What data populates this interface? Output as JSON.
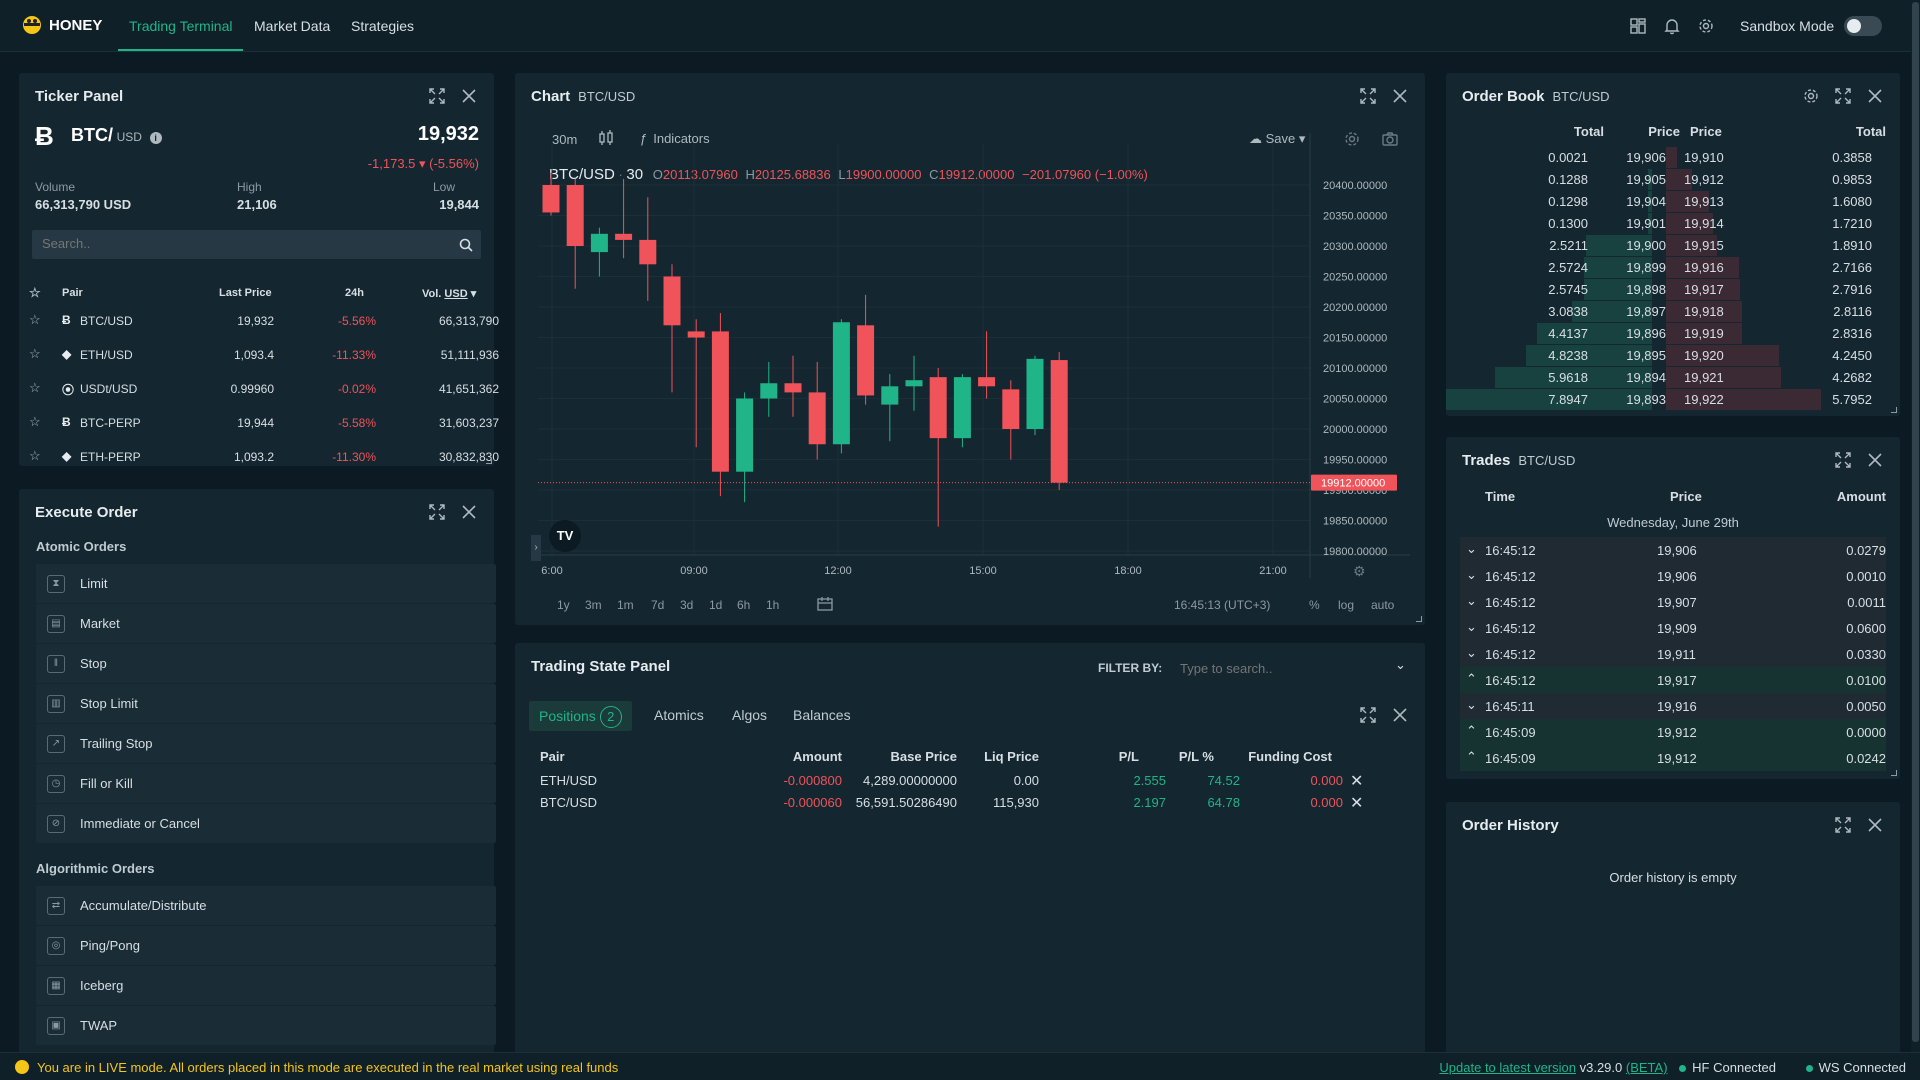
{
  "nav": {
    "brand": "HONEY",
    "tabs": [
      "Trading Terminal",
      "Market Data",
      "Strategies"
    ],
    "sandbox_label": "Sandbox Mode"
  },
  "ticker": {
    "title": "Ticker Panel",
    "symbol": "BTC/",
    "quote": "USD",
    "price": "19,932",
    "change": "-1,173.5 ▾ (-5.56%)",
    "volume_label": "Volume",
    "volume": "66,313,790 USD",
    "high_label": "High",
    "high": "21,106",
    "low_label": "Low",
    "low": "19,844",
    "search_placeholder": "Search..",
    "headers": [
      "Pair",
      "Last Price",
      "24h",
      "Vol.",
      "USD"
    ],
    "rows": [
      {
        "pair": "BTC/USD",
        "last": "19,932",
        "change": "-5.56%",
        "vol": "66,313,790"
      },
      {
        "pair": "ETH/USD",
        "last": "1,093.4",
        "change": "-11.33%",
        "vol": "51,111,936"
      },
      {
        "pair": "USDt/USD",
        "last": "0.99960",
        "change": "-0.02%",
        "vol": "41,651,362"
      },
      {
        "pair": "BTC-PERP",
        "last": "19,944",
        "change": "-5.58%",
        "vol": "31,603,237"
      },
      {
        "pair": "ETH-PERP",
        "last": "1,093.2",
        "change": "-11.30%",
        "vol": "30,832,830"
      }
    ]
  },
  "execute": {
    "title": "Execute Order",
    "atomic_label": "Atomic Orders",
    "atomic": [
      "Limit",
      "Market",
      "Stop",
      "Stop Limit",
      "Trailing Stop",
      "Fill or Kill",
      "Immediate or Cancel"
    ],
    "algo_label": "Algorithmic Orders",
    "algo": [
      "Accumulate/Distribute",
      "Ping/Pong",
      "Iceberg",
      "TWAP"
    ]
  },
  "chart": {
    "title": "Chart",
    "pair": "BTC/USD",
    "interval": "30m",
    "indicators_label": "Indicators",
    "save_label": "Save",
    "legend_symbol": "BTC/USD",
    "legend_interval": "30",
    "ohlc": {
      "o_label": "O",
      "o": "20113.07960",
      "h_label": "H",
      "h": "20125.68836",
      "l_label": "L",
      "l": "19900.00000",
      "c_label": "C",
      "c": "19912.00000",
      "chg": "−201.07960 (−1.00%)"
    },
    "y_ticks": [
      "20400.00000",
      "20350.00000",
      "20300.00000",
      "20250.00000",
      "20200.00000",
      "20150.00000",
      "20100.00000",
      "20050.00000",
      "20000.00000",
      "19950.00000",
      "19900.00000",
      "19850.00000",
      "19800.00000"
    ],
    "last_price_tag": "19912.00000",
    "x_ticks": [
      "6:00",
      "09:00",
      "12:00",
      "15:00",
      "18:00",
      "21:00"
    ],
    "ranges": [
      "1y",
      "3m",
      "1m",
      "7d",
      "3d",
      "1d",
      "6h",
      "1h"
    ],
    "time": "16:45:13 (UTC+3)",
    "opts": [
      "%",
      "log",
      "auto"
    ]
  },
  "chart_data": {
    "type": "candlestick",
    "series": [
      {
        "name": "BTC/USD",
        "candles": [
          {
            "o": 20400,
            "h": 20420,
            "l": 20350,
            "c": 20355
          },
          {
            "o": 20400,
            "h": 20410,
            "l": 20230,
            "c": 20300
          },
          {
            "o": 20290,
            "h": 20330,
            "l": 20250,
            "c": 20320
          },
          {
            "o": 20320,
            "h": 20410,
            "l": 20280,
            "c": 20310
          },
          {
            "o": 20310,
            "h": 20380,
            "l": 20210,
            "c": 20270
          },
          {
            "o": 20250,
            "h": 20270,
            "l": 20060,
            "c": 20170
          },
          {
            "o": 20160,
            "h": 20180,
            "l": 19970,
            "c": 20150
          },
          {
            "o": 20160,
            "h": 20190,
            "l": 19890,
            "c": 19930
          },
          {
            "o": 19930,
            "h": 20060,
            "l": 19880,
            "c": 20050
          },
          {
            "o": 20050,
            "h": 20110,
            "l": 20020,
            "c": 20075
          },
          {
            "o": 20075,
            "h": 20120,
            "l": 20020,
            "c": 20060
          },
          {
            "o": 20060,
            "h": 20110,
            "l": 19950,
            "c": 19975
          },
          {
            "o": 19975,
            "h": 20180,
            "l": 19960,
            "c": 20175
          },
          {
            "o": 20170,
            "h": 20220,
            "l": 20040,
            "c": 20055
          },
          {
            "o": 20040,
            "h": 20090,
            "l": 19980,
            "c": 20070
          },
          {
            "o": 20070,
            "h": 20120,
            "l": 20030,
            "c": 20080
          },
          {
            "o": 20085,
            "h": 20100,
            "l": 19840,
            "c": 19985
          },
          {
            "o": 19985,
            "h": 20090,
            "l": 19970,
            "c": 20085
          },
          {
            "o": 20085,
            "h": 20160,
            "l": 20050,
            "c": 20070
          },
          {
            "o": 20065,
            "h": 20080,
            "l": 19950,
            "c": 20000
          },
          {
            "o": 20000,
            "h": 20120,
            "l": 19990,
            "c": 20115
          },
          {
            "o": 20113,
            "h": 20126,
            "l": 19900,
            "c": 19912
          }
        ]
      }
    ],
    "y_range": [
      19800,
      20400
    ],
    "x_ticks": [
      "6:00",
      "09:00",
      "12:00",
      "15:00",
      "18:00",
      "21:00"
    ]
  },
  "state": {
    "title": "Trading State Panel",
    "filter_label": "FILTER BY:",
    "filter_placeholder": "Type to search..",
    "tabs": [
      "Positions",
      "Atomics",
      "Algos",
      "Balances"
    ],
    "positions_count": "2",
    "headers": [
      "Pair",
      "Amount",
      "Base Price",
      "Liq Price",
      "P/L",
      "P/L %",
      "Funding Cost"
    ],
    "rows": [
      {
        "pair": "ETH/USD",
        "amount": "-0.000800",
        "base": "4,289.00000000",
        "liq": "0.00",
        "pl": "2.555",
        "plp": "74.52",
        "fund": "0.000"
      },
      {
        "pair": "BTC/USD",
        "amount": "-0.000060",
        "base": "56,591.50286490",
        "liq": "115,930",
        "pl": "2.197",
        "plp": "64.78",
        "fund": "0.000"
      }
    ]
  },
  "orderbook": {
    "title": "Order Book",
    "pair": "BTC/USD",
    "headers": [
      "Total",
      "Price",
      "Price",
      "Total"
    ],
    "bids": [
      {
        "total": "0.0021",
        "price": "19,906",
        "depth": 0.0
      },
      {
        "total": "0.1288",
        "price": "19,905",
        "depth": 0.02
      },
      {
        "total": "0.1298",
        "price": "19,904",
        "depth": 0.02
      },
      {
        "total": "0.1300",
        "price": "19,901",
        "depth": 0.02
      },
      {
        "total": "2.5211",
        "price": "19,900",
        "depth": 0.32
      },
      {
        "total": "2.5724",
        "price": "19,899",
        "depth": 0.33
      },
      {
        "total": "2.5745",
        "price": "19,898",
        "depth": 0.33
      },
      {
        "total": "3.0838",
        "price": "19,897",
        "depth": 0.39
      },
      {
        "total": "4.4137",
        "price": "19,896",
        "depth": 0.56
      },
      {
        "total": "4.8238",
        "price": "19,895",
        "depth": 0.61
      },
      {
        "total": "5.9618",
        "price": "19,894",
        "depth": 0.76
      },
      {
        "total": "7.8947",
        "price": "19,893",
        "depth": 1.0
      }
    ],
    "asks": [
      {
        "price": "19,910",
        "total": "0.3858",
        "depth": 0.07
      },
      {
        "price": "19,912",
        "total": "0.9853",
        "depth": 0.17
      },
      {
        "price": "19,913",
        "total": "1.6080",
        "depth": 0.28
      },
      {
        "price": "19,914",
        "total": "1.7210",
        "depth": 0.3
      },
      {
        "price": "19,915",
        "total": "1.8910",
        "depth": 0.33
      },
      {
        "price": "19,916",
        "total": "2.7166",
        "depth": 0.47
      },
      {
        "price": "19,917",
        "total": "2.7916",
        "depth": 0.48
      },
      {
        "price": "19,918",
        "total": "2.8116",
        "depth": 0.49
      },
      {
        "price": "19,919",
        "total": "2.8316",
        "depth": 0.49
      },
      {
        "price": "19,920",
        "total": "4.2450",
        "depth": 0.73
      },
      {
        "price": "19,921",
        "total": "4.2682",
        "depth": 0.74
      },
      {
        "price": "19,922",
        "total": "5.7952",
        "depth": 1.0
      }
    ]
  },
  "trades": {
    "title": "Trades",
    "pair": "BTC/USD",
    "headers": [
      "Time",
      "Price",
      "Amount"
    ],
    "date": "Wednesday, June 29th",
    "rows": [
      {
        "side": "sell",
        "time": "16:45:12",
        "price": "19,906",
        "amount": "0.0279"
      },
      {
        "side": "sell",
        "time": "16:45:12",
        "price": "19,906",
        "amount": "0.0010"
      },
      {
        "side": "sell",
        "time": "16:45:12",
        "price": "19,907",
        "amount": "0.0011"
      },
      {
        "side": "sell",
        "time": "16:45:12",
        "price": "19,909",
        "amount": "0.0600"
      },
      {
        "side": "sell",
        "time": "16:45:12",
        "price": "19,911",
        "amount": "0.0330"
      },
      {
        "side": "buy",
        "time": "16:45:12",
        "price": "19,917",
        "amount": "0.0100"
      },
      {
        "side": "sell",
        "time": "16:45:11",
        "price": "19,916",
        "amount": "0.0050"
      },
      {
        "side": "buy",
        "time": "16:45:09",
        "price": "19,912",
        "amount": "0.0000"
      },
      {
        "side": "buy",
        "time": "16:45:09",
        "price": "19,912",
        "amount": "0.0242"
      }
    ]
  },
  "history": {
    "title": "Order History",
    "empty": "Order history is empty"
  },
  "footer": {
    "live_msg": "You are in LIVE mode. All orders placed in this mode are executed in the real market using real funds",
    "update_link": "Update to latest version",
    "version": "v3.29.0",
    "beta": "(BETA)",
    "hf": "HF Connected",
    "ws": "WS Connected"
  },
  "colors": {
    "green": "#1fb589",
    "red": "#f05359",
    "bg": "#0c1a23",
    "panel": "#14262f"
  }
}
